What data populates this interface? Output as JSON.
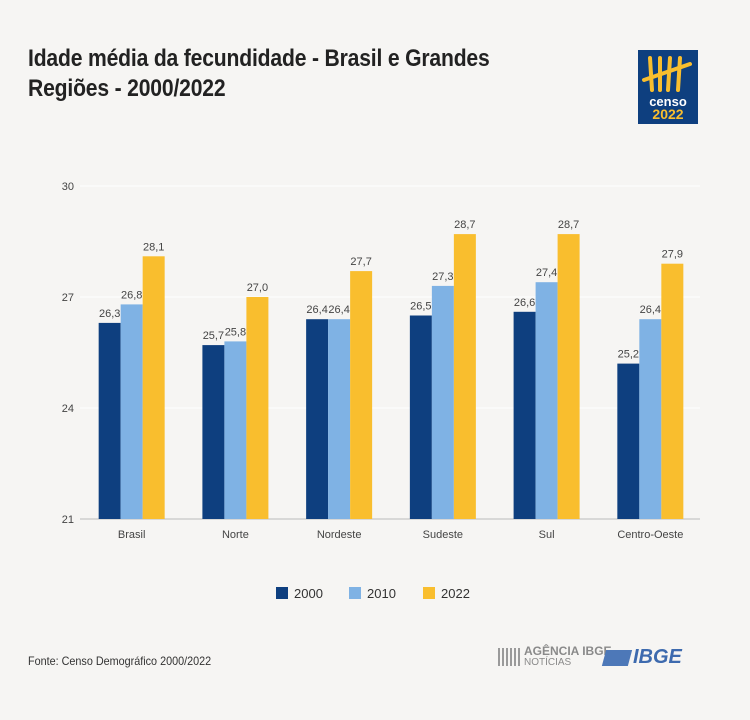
{
  "title": "Idade média da fecundidade - Brasil e Grandes Regiões - 2000/2022",
  "logo": {
    "line1": "censo",
    "line2": "2022"
  },
  "source": "Fonte: Censo Demográfico 2000/2022",
  "footer": {
    "agencia": "AGÊNCIA IBGE",
    "agencia_sub": "NOTÍCIAS",
    "ibge": "IBGE"
  },
  "chart_data": {
    "type": "bar",
    "title": "Idade média da fecundidade - Brasil e Grandes Regiões - 2000/2022",
    "categories": [
      "Brasil",
      "Norte",
      "Nordeste",
      "Sudeste",
      "Sul",
      "Centro-Oeste"
    ],
    "series": [
      {
        "name": "2000",
        "color": "#0e3f7f",
        "values": [
          26.3,
          25.7,
          26.4,
          26.5,
          26.6,
          25.2
        ],
        "labels": [
          "26,3",
          "25,7",
          "26,4",
          "26,5",
          "26,6",
          "25,2"
        ]
      },
      {
        "name": "2010",
        "color": "#7fb2e4",
        "values": [
          26.8,
          25.8,
          26.4,
          27.3,
          27.4,
          26.4
        ],
        "labels": [
          "26,8",
          "25,8",
          "26,4",
          "27,3",
          "27,4",
          "26,4"
        ]
      },
      {
        "name": "2022",
        "color": "#f9be2e",
        "values": [
          28.1,
          27.0,
          27.7,
          28.7,
          28.7,
          27.9
        ],
        "labels": [
          "28,1",
          "27,0",
          "27,7",
          "28,7",
          "28,7",
          "27,9"
        ]
      }
    ],
    "ylim": [
      21,
      30
    ],
    "yticks": [
      "21",
      "24",
      "27",
      "30"
    ],
    "ytick_values": [
      21,
      24,
      27,
      30
    ],
    "grid": true,
    "legend": "bottom"
  }
}
